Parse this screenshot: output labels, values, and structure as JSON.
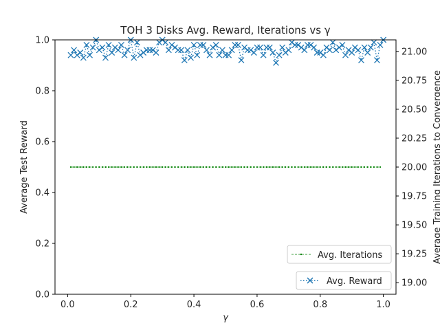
{
  "chart_data": {
    "type": "line",
    "title": "TOH 3 Disks Avg. Reward, Iterations vs γ",
    "xlabel": "γ",
    "ylabel": "Average Test Reward",
    "y2label": "Average Training Iterations to Convergence",
    "xlim": [
      -0.04,
      1.04
    ],
    "ylim": [
      0.0,
      1.0
    ],
    "y2lim": [
      18.9,
      21.1
    ],
    "xticks": [
      0.0,
      0.2,
      0.4,
      0.6,
      0.8,
      1.0
    ],
    "xtick_labels": [
      "0.0",
      "0.2",
      "0.4",
      "0.6",
      "0.8",
      "1.0"
    ],
    "yticks": [
      0.0,
      0.2,
      0.4,
      0.6,
      0.8,
      1.0
    ],
    "ytick_labels": [
      "0.0",
      "0.2",
      "0.4",
      "0.6",
      "0.8",
      "1.0"
    ],
    "y2ticks": [
      19.0,
      19.25,
      19.5,
      19.75,
      20.0,
      20.25,
      20.5,
      20.75,
      21.0
    ],
    "y2tick_labels": [
      "19.00",
      "19.25",
      "19.50",
      "19.75",
      "20.00",
      "20.25",
      "20.50",
      "20.75",
      "21.00"
    ],
    "grid": false,
    "series": [
      {
        "name": "Avg. Reward",
        "axis": "left",
        "color": "#1f77b4",
        "linestyle": "dotted",
        "marker": "x",
        "x_start": 0.01,
        "x_step": 0.01,
        "values": [
          0.94,
          0.96,
          0.94,
          0.95,
          0.93,
          0.98,
          0.94,
          0.97,
          1.0,
          0.96,
          0.97,
          0.93,
          0.98,
          0.95,
          0.97,
          0.96,
          0.98,
          0.94,
          0.96,
          1.0,
          0.93,
          0.99,
          0.94,
          0.95,
          0.96,
          0.96,
          0.96,
          0.95,
          0.99,
          1.0,
          0.99,
          0.96,
          0.98,
          0.97,
          0.96,
          0.96,
          0.92,
          0.96,
          0.93,
          0.98,
          0.94,
          0.98,
          0.98,
          0.96,
          0.94,
          0.97,
          0.98,
          0.94,
          0.96,
          0.94,
          0.94,
          0.96,
          0.98,
          0.98,
          0.92,
          0.97,
          0.96,
          0.96,
          0.95,
          0.97,
          0.97,
          0.94,
          0.97,
          0.97,
          0.95,
          0.91,
          0.94,
          0.97,
          0.95,
          0.96,
          0.99,
          0.98,
          0.98,
          0.97,
          0.96,
          0.98,
          0.98,
          0.97,
          0.95,
          0.95,
          0.94,
          0.97,
          0.96,
          0.99,
          0.96,
          0.97,
          0.98,
          0.94,
          0.96,
          0.95,
          0.97,
          0.96,
          0.92,
          0.97,
          0.95,
          0.97,
          0.99,
          0.92,
          0.98,
          1.0
        ]
      },
      {
        "name": "Avg. Iterations",
        "axis": "right",
        "color": "#008000",
        "linestyle": "dashed",
        "marker": "dot",
        "x_start": 0.01,
        "x_step": 0.01,
        "count": 99,
        "value": 20.0
      }
    ],
    "legend": [
      {
        "label": "Avg. Iterations",
        "placement": "lower-right-upper"
      },
      {
        "label": "Avg. Reward",
        "placement": "lower-right"
      }
    ]
  }
}
